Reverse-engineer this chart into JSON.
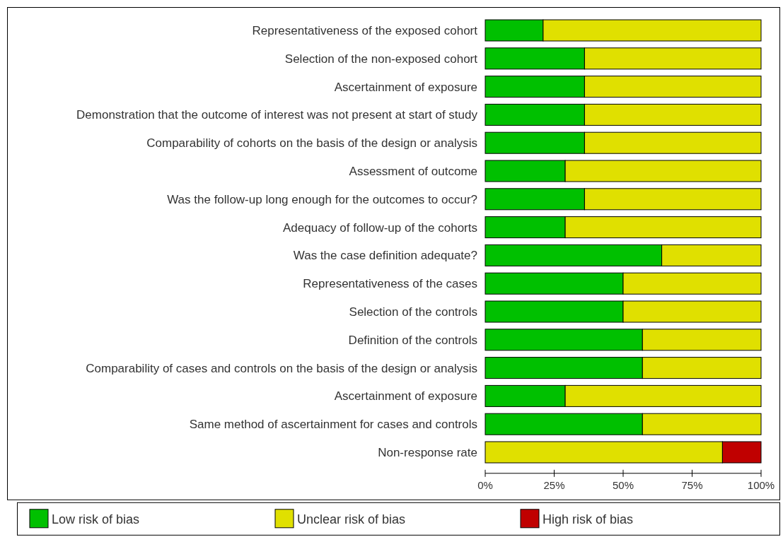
{
  "chart_data": {
    "type": "bar",
    "orientation": "horizontal",
    "stacked": true,
    "categories": [
      "Representativeness of the exposed cohort",
      "Selection of the non-exposed cohort",
      "Ascertainment of exposure",
      "Demonstration that the outcome of interest was not present at start of study",
      "Comparability of cohorts on the basis of the design or analysis",
      "Assessment of outcome",
      "Was the follow-up long enough for the outcomes to occur?",
      "Adequacy of follow-up of the cohorts",
      "Was the case definition adequate?",
      "Representativeness of the cases",
      "Selection of the controls",
      "Definition of the controls",
      "Comparability of cases and controls on the basis of the design or analysis",
      "Ascertainment of exposure",
      "Same method of ascertainment for cases and controls",
      "Non-response rate"
    ],
    "series": [
      {
        "name": "Low risk of bias",
        "color": "#00c000",
        "values": [
          21,
          36,
          36,
          36,
          36,
          29,
          36,
          29,
          64,
          50,
          50,
          57,
          57,
          29,
          57,
          0
        ]
      },
      {
        "name": "Unclear risk of bias",
        "color": "#e0e000",
        "values": [
          79,
          64,
          64,
          64,
          64,
          71,
          64,
          71,
          36,
          50,
          50,
          43,
          43,
          71,
          43,
          86
        ]
      },
      {
        "name": "High risk of bias",
        "color": "#c00000",
        "values": [
          0,
          0,
          0,
          0,
          0,
          0,
          0,
          0,
          0,
          0,
          0,
          0,
          0,
          0,
          0,
          14
        ]
      }
    ],
    "xlim": [
      0,
      100
    ],
    "xticks": [
      {
        "value": 0,
        "label": "0%"
      },
      {
        "value": 25,
        "label": "25%"
      },
      {
        "value": 50,
        "label": "50%"
      },
      {
        "value": 75,
        "label": "75%"
      },
      {
        "value": 100,
        "label": "100%"
      }
    ],
    "legend": "bottom"
  }
}
